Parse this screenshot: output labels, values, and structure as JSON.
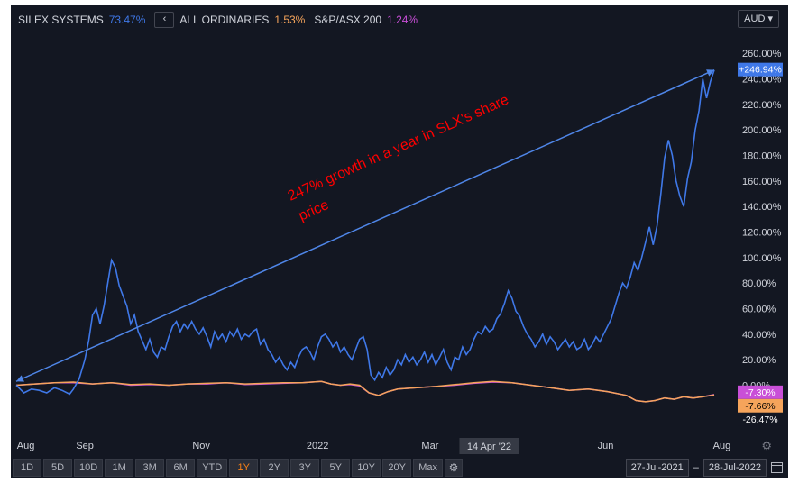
{
  "legend": [
    {
      "name": "SILEX SYSTEMS",
      "value": "73.47%",
      "color": "#3f78e8"
    },
    {
      "name": "ALL ORDINARIES",
      "value": "1.53%",
      "color": "#f5a45b"
    },
    {
      "name": "S&P/ASX 200",
      "value": "1.24%",
      "color": "#c94fd8"
    }
  ],
  "currency": "AUD",
  "annotation": {
    "line1": "247% growth in a year in SLX's share",
    "line2": "price",
    "color": "#ff0000"
  },
  "toolbar": {
    "buttons": [
      "1D",
      "5D",
      "10D",
      "1M",
      "3M",
      "6M",
      "YTD",
      "1Y",
      "2Y",
      "3Y",
      "5Y",
      "10Y",
      "20Y",
      "Max"
    ],
    "active": "1Y"
  },
  "date_range": {
    "start": "27-Jul-2021",
    "separator": "–",
    "end": "28-Jul-2022"
  },
  "crosshair_label": "14 Apr '22",
  "chart_data": {
    "type": "line",
    "ylim": [
      -30,
      270
    ],
    "y_ticks": [
      "260.00%",
      "240.00%",
      "220.00%",
      "200.00%",
      "180.00%",
      "160.00%",
      "140.00%",
      "120.00%",
      "100.00%",
      "80.00%",
      "60.00%",
      "40.00%",
      "20.00%",
      "0.00%"
    ],
    "x_labels": [
      {
        "label": "Aug",
        "day": 5
      },
      {
        "label": "Sep",
        "day": 36
      },
      {
        "label": "Nov",
        "day": 97
      },
      {
        "label": "2022",
        "day": 158
      },
      {
        "label": "Mar",
        "day": 217
      },
      {
        "label": "Apr",
        "day": 248
      },
      {
        "label": "Jun",
        "day": 309
      },
      {
        "label": "Aug",
        "day": 370
      }
    ],
    "x_range_days": [
      0,
      366
    ],
    "series": [
      {
        "name": "SILEX SYSTEMS",
        "color": "#3f78e8",
        "end_label": "+246.94%",
        "points": [
          [
            0,
            0
          ],
          [
            4,
            -6
          ],
          [
            8,
            -3
          ],
          [
            12,
            -4
          ],
          [
            16,
            -6
          ],
          [
            20,
            -2
          ],
          [
            24,
            -4
          ],
          [
            28,
            -7
          ],
          [
            30,
            -3
          ],
          [
            33,
            5
          ],
          [
            36,
            20
          ],
          [
            38,
            35
          ],
          [
            40,
            55
          ],
          [
            42,
            60
          ],
          [
            44,
            48
          ],
          [
            46,
            62
          ],
          [
            48,
            80
          ],
          [
            50,
            98
          ],
          [
            52,
            92
          ],
          [
            54,
            78
          ],
          [
            56,
            70
          ],
          [
            58,
            62
          ],
          [
            60,
            48
          ],
          [
            62,
            55
          ],
          [
            64,
            42
          ],
          [
            66,
            35
          ],
          [
            68,
            28
          ],
          [
            70,
            36
          ],
          [
            72,
            26
          ],
          [
            74,
            22
          ],
          [
            76,
            30
          ],
          [
            78,
            28
          ],
          [
            80,
            38
          ],
          [
            82,
            46
          ],
          [
            84,
            50
          ],
          [
            86,
            42
          ],
          [
            88,
            48
          ],
          [
            90,
            44
          ],
          [
            92,
            50
          ],
          [
            94,
            44
          ],
          [
            96,
            40
          ],
          [
            98,
            45
          ],
          [
            100,
            38
          ],
          [
            102,
            30
          ],
          [
            104,
            42
          ],
          [
            106,
            36
          ],
          [
            108,
            40
          ],
          [
            110,
            34
          ],
          [
            112,
            42
          ],
          [
            114,
            38
          ],
          [
            116,
            44
          ],
          [
            118,
            36
          ],
          [
            120,
            40
          ],
          [
            122,
            38
          ],
          [
            124,
            42
          ],
          [
            126,
            44
          ],
          [
            128,
            32
          ],
          [
            130,
            36
          ],
          [
            132,
            28
          ],
          [
            134,
            24
          ],
          [
            136,
            18
          ],
          [
            138,
            22
          ],
          [
            140,
            16
          ],
          [
            142,
            12
          ],
          [
            144,
            18
          ],
          [
            146,
            14
          ],
          [
            148,
            22
          ],
          [
            150,
            28
          ],
          [
            152,
            30
          ],
          [
            154,
            26
          ],
          [
            156,
            20
          ],
          [
            158,
            30
          ],
          [
            160,
            38
          ],
          [
            162,
            40
          ],
          [
            164,
            36
          ],
          [
            166,
            30
          ],
          [
            168,
            34
          ],
          [
            170,
            26
          ],
          [
            172,
            30
          ],
          [
            174,
            24
          ],
          [
            176,
            20
          ],
          [
            178,
            28
          ],
          [
            180,
            36
          ],
          [
            182,
            38
          ],
          [
            184,
            28
          ],
          [
            186,
            8
          ],
          [
            188,
            4
          ],
          [
            190,
            10
          ],
          [
            192,
            6
          ],
          [
            194,
            14
          ],
          [
            196,
            8
          ],
          [
            198,
            12
          ],
          [
            200,
            20
          ],
          [
            202,
            16
          ],
          [
            204,
            24
          ],
          [
            206,
            18
          ],
          [
            208,
            22
          ],
          [
            210,
            16
          ],
          [
            212,
            20
          ],
          [
            214,
            26
          ],
          [
            216,
            18
          ],
          [
            218,
            24
          ],
          [
            220,
            16
          ],
          [
            222,
            22
          ],
          [
            224,
            28
          ],
          [
            226,
            18
          ],
          [
            228,
            12
          ],
          [
            230,
            22
          ],
          [
            232,
            20
          ],
          [
            234,
            30
          ],
          [
            236,
            24
          ],
          [
            238,
            28
          ],
          [
            240,
            36
          ],
          [
            242,
            42
          ],
          [
            244,
            40
          ],
          [
            246,
            46
          ],
          [
            248,
            42
          ],
          [
            250,
            44
          ],
          [
            252,
            52
          ],
          [
            254,
            56
          ],
          [
            256,
            64
          ],
          [
            258,
            74
          ],
          [
            260,
            68
          ],
          [
            262,
            58
          ],
          [
            264,
            54
          ],
          [
            266,
            46
          ],
          [
            268,
            40
          ],
          [
            270,
            36
          ],
          [
            272,
            30
          ],
          [
            274,
            34
          ],
          [
            276,
            40
          ],
          [
            278,
            32
          ],
          [
            280,
            38
          ],
          [
            282,
            34
          ],
          [
            284,
            28
          ],
          [
            286,
            32
          ],
          [
            288,
            36
          ],
          [
            290,
            30
          ],
          [
            292,
            34
          ],
          [
            294,
            28
          ],
          [
            296,
            30
          ],
          [
            298,
            36
          ],
          [
            300,
            28
          ],
          [
            302,
            32
          ],
          [
            304,
            38
          ],
          [
            306,
            34
          ],
          [
            308,
            40
          ],
          [
            310,
            46
          ],
          [
            312,
            52
          ],
          [
            314,
            62
          ],
          [
            316,
            72
          ],
          [
            318,
            80
          ],
          [
            320,
            76
          ],
          [
            322,
            85
          ],
          [
            324,
            96
          ],
          [
            326,
            90
          ],
          [
            328,
            100
          ],
          [
            330,
            112
          ],
          [
            332,
            124
          ],
          [
            334,
            110
          ],
          [
            336,
            125
          ],
          [
            338,
            150
          ],
          [
            340,
            178
          ],
          [
            342,
            192
          ],
          [
            344,
            180
          ],
          [
            346,
            160
          ],
          [
            348,
            148
          ],
          [
            350,
            140
          ],
          [
            352,
            162
          ],
          [
            354,
            175
          ],
          [
            356,
            200
          ],
          [
            358,
            215
          ],
          [
            360,
            240
          ],
          [
            362,
            225
          ],
          [
            364,
            238
          ],
          [
            366,
            246.94
          ]
        ]
      },
      {
        "name": "ALL ORDINARIES",
        "color": "#f5a45b",
        "end_label": "-7.66%",
        "points": [
          [
            0,
            0
          ],
          [
            10,
            1
          ],
          [
            20,
            2
          ],
          [
            30,
            2.5
          ],
          [
            40,
            1
          ],
          [
            50,
            2
          ],
          [
            60,
            0.5
          ],
          [
            70,
            1
          ],
          [
            80,
            0
          ],
          [
            90,
            1
          ],
          [
            100,
            1.5
          ],
          [
            110,
            2
          ],
          [
            120,
            1
          ],
          [
            130,
            1.5
          ],
          [
            140,
            2
          ],
          [
            150,
            2
          ],
          [
            160,
            3
          ],
          [
            165,
            1
          ],
          [
            170,
            0
          ],
          [
            175,
            1
          ],
          [
            180,
            0
          ],
          [
            185,
            -6
          ],
          [
            190,
            -8
          ],
          [
            195,
            -5
          ],
          [
            200,
            -3
          ],
          [
            210,
            -2
          ],
          [
            220,
            -1
          ],
          [
            230,
            0.5
          ],
          [
            240,
            2
          ],
          [
            250,
            3
          ],
          [
            260,
            2
          ],
          [
            270,
            0
          ],
          [
            280,
            -2
          ],
          [
            290,
            -4
          ],
          [
            300,
            -3
          ],
          [
            310,
            -5
          ],
          [
            320,
            -8
          ],
          [
            325,
            -12
          ],
          [
            330,
            -13
          ],
          [
            335,
            -12
          ],
          [
            340,
            -10
          ],
          [
            345,
            -11
          ],
          [
            350,
            -9
          ],
          [
            355,
            -10
          ],
          [
            360,
            -9
          ],
          [
            366,
            -7.66
          ]
        ]
      },
      {
        "name": "S&P/ASX 200",
        "color": "#c94fd8",
        "end_label": "-7.30%",
        "points": [
          [
            0,
            0
          ],
          [
            10,
            1
          ],
          [
            20,
            2
          ],
          [
            30,
            2
          ],
          [
            40,
            1
          ],
          [
            50,
            2
          ],
          [
            60,
            0
          ],
          [
            70,
            0.5
          ],
          [
            80,
            0
          ],
          [
            90,
            1
          ],
          [
            100,
            1
          ],
          [
            110,
            2
          ],
          [
            120,
            0.5
          ],
          [
            130,
            1
          ],
          [
            140,
            1.5
          ],
          [
            150,
            2
          ],
          [
            160,
            3
          ],
          [
            165,
            1
          ],
          [
            170,
            0
          ],
          [
            175,
            0.5
          ],
          [
            180,
            -0.5
          ],
          [
            185,
            -6
          ],
          [
            190,
            -8
          ],
          [
            195,
            -5
          ],
          [
            200,
            -3
          ],
          [
            210,
            -2
          ],
          [
            220,
            -1
          ],
          [
            230,
            0
          ],
          [
            240,
            1.5
          ],
          [
            250,
            2.5
          ],
          [
            260,
            2
          ],
          [
            270,
            0
          ],
          [
            280,
            -2
          ],
          [
            290,
            -4
          ],
          [
            300,
            -3
          ],
          [
            310,
            -5
          ],
          [
            320,
            -8
          ],
          [
            325,
            -12
          ],
          [
            330,
            -13
          ],
          [
            335,
            -12
          ],
          [
            340,
            -10
          ],
          [
            345,
            -11
          ],
          [
            350,
            -9
          ],
          [
            355,
            -10
          ],
          [
            360,
            -9
          ],
          [
            366,
            -7.3
          ]
        ]
      }
    ],
    "trendline": {
      "color": "#4f86e8",
      "from": {
        "day": 0,
        "value": 3
      },
      "to": {
        "day": 366,
        "value": 246.94
      }
    },
    "extra_axis_labels": [
      {
        "text": "-26.47%",
        "color": "#ffffff",
        "bg": "#131722"
      }
    ]
  }
}
